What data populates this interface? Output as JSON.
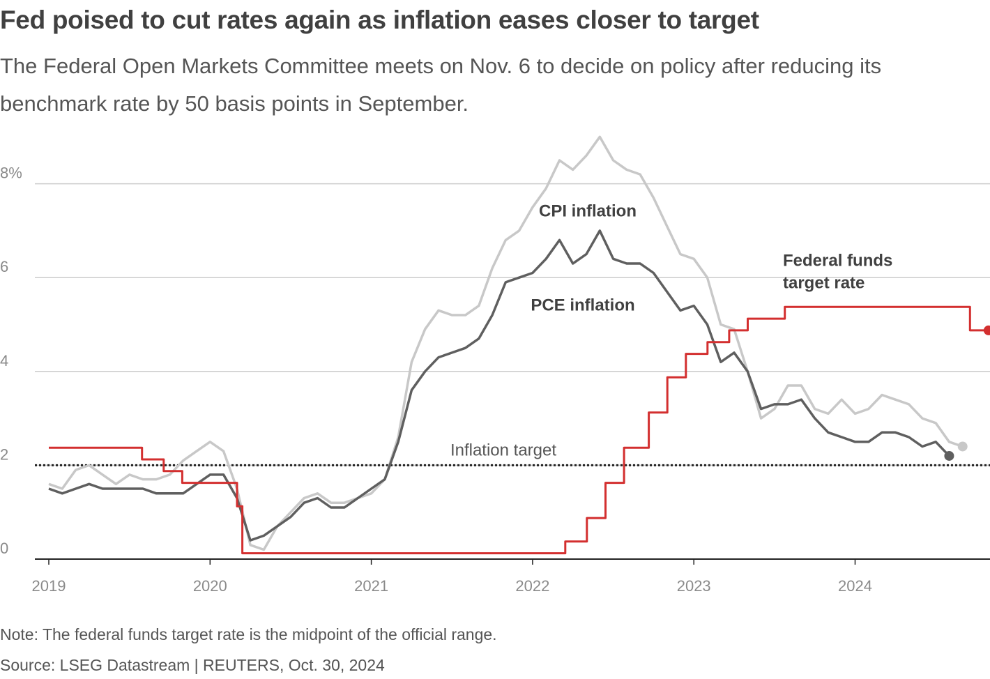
{
  "header": {
    "title": "Fed poised to cut rates again as inflation eases closer to target",
    "subtitle": "The Federal Open Markets Committee meets on Nov. 6 to decide on policy after reducing its benchmark rate by 50 basis points in September."
  },
  "footer": {
    "note": "Note: The federal funds target rate is the midpoint of the official range.",
    "source": "Source: LSEG Datastream | REUTERS, Oct. 30, 2024"
  },
  "chart_data": {
    "type": "line",
    "x_range": [
      2019.0,
      2024.93
    ],
    "ylim": [
      0,
      9
    ],
    "y_ticks": [
      0,
      2,
      4,
      6,
      8
    ],
    "y_tick_labels": [
      "0",
      "2",
      "4",
      "6",
      "8%"
    ],
    "x_ticks": [
      2019,
      2020,
      2021,
      2022,
      2023,
      2024
    ],
    "x_tick_labels": [
      "2019",
      "2020",
      "2021",
      "2022",
      "2023",
      "2024"
    ],
    "grid": true,
    "colors": {
      "cpi": "#c8c8c8",
      "pce": "#5f5f5f",
      "fed": "#d32f2f",
      "grid": "#cccccc",
      "target": "#222222"
    },
    "reference_line": {
      "value": 2,
      "label": "Inflation target"
    },
    "series": [
      {
        "name": "CPI inflation",
        "key": "cpi",
        "start": "2019-01",
        "values": [
          1.6,
          1.5,
          1.9,
          2.0,
          1.8,
          1.6,
          1.8,
          1.7,
          1.7,
          1.8,
          2.1,
          2.3,
          2.5,
          2.3,
          1.5,
          0.3,
          0.2,
          0.7,
          1.0,
          1.3,
          1.4,
          1.2,
          1.2,
          1.3,
          1.4,
          1.7,
          2.6,
          4.2,
          4.9,
          5.3,
          5.2,
          5.2,
          5.4,
          6.2,
          6.8,
          7.0,
          7.5,
          7.9,
          8.5,
          8.3,
          8.6,
          9.0,
          8.5,
          8.3,
          8.2,
          7.7,
          7.1,
          6.5,
          6.4,
          6.0,
          5.0,
          4.9,
          4.0,
          3.0,
          3.2,
          3.7,
          3.7,
          3.2,
          3.1,
          3.4,
          3.1,
          3.2,
          3.5,
          3.4,
          3.3,
          3.0,
          2.9,
          2.5,
          2.4
        ]
      },
      {
        "name": "PCE inflation",
        "key": "pce",
        "start": "2019-01",
        "values": [
          1.5,
          1.4,
          1.5,
          1.6,
          1.5,
          1.5,
          1.5,
          1.5,
          1.4,
          1.4,
          1.4,
          1.6,
          1.8,
          1.8,
          1.3,
          0.4,
          0.5,
          0.7,
          0.9,
          1.2,
          1.3,
          1.1,
          1.1,
          1.3,
          1.5,
          1.7,
          2.5,
          3.6,
          4.0,
          4.3,
          4.4,
          4.5,
          4.7,
          5.2,
          5.9,
          6.0,
          6.1,
          6.4,
          6.8,
          6.3,
          6.5,
          7.0,
          6.4,
          6.3,
          6.3,
          6.1,
          5.7,
          5.3,
          5.4,
          5.0,
          4.2,
          4.4,
          4.0,
          3.2,
          3.3,
          3.3,
          3.4,
          3.0,
          2.7,
          2.6,
          2.5,
          2.5,
          2.7,
          2.7,
          2.6,
          2.4,
          2.5,
          2.2
        ]
      },
      {
        "name": "Federal funds target rate",
        "key": "fed",
        "type": "step",
        "label_lines": [
          "Federal funds",
          "target rate"
        ],
        "points": [
          {
            "date": "2019-01-01",
            "rate": 2.375
          },
          {
            "date": "2019-07-31",
            "rate": 2.125
          },
          {
            "date": "2019-09-18",
            "rate": 1.875
          },
          {
            "date": "2019-10-30",
            "rate": 1.625
          },
          {
            "date": "2020-03-03",
            "rate": 1.125
          },
          {
            "date": "2020-03-15",
            "rate": 0.125
          },
          {
            "date": "2022-03-16",
            "rate": 0.375
          },
          {
            "date": "2022-05-04",
            "rate": 0.875
          },
          {
            "date": "2022-06-15",
            "rate": 1.625
          },
          {
            "date": "2022-07-27",
            "rate": 2.375
          },
          {
            "date": "2022-09-21",
            "rate": 3.125
          },
          {
            "date": "2022-11-02",
            "rate": 3.875
          },
          {
            "date": "2022-12-14",
            "rate": 4.375
          },
          {
            "date": "2023-02-01",
            "rate": 4.625
          },
          {
            "date": "2023-03-22",
            "rate": 4.875
          },
          {
            "date": "2023-05-03",
            "rate": 5.125
          },
          {
            "date": "2023-07-26",
            "rate": 5.375
          },
          {
            "date": "2024-09-18",
            "rate": 4.875
          },
          {
            "date": "2024-10-30",
            "rate": 4.875
          }
        ]
      }
    ]
  }
}
